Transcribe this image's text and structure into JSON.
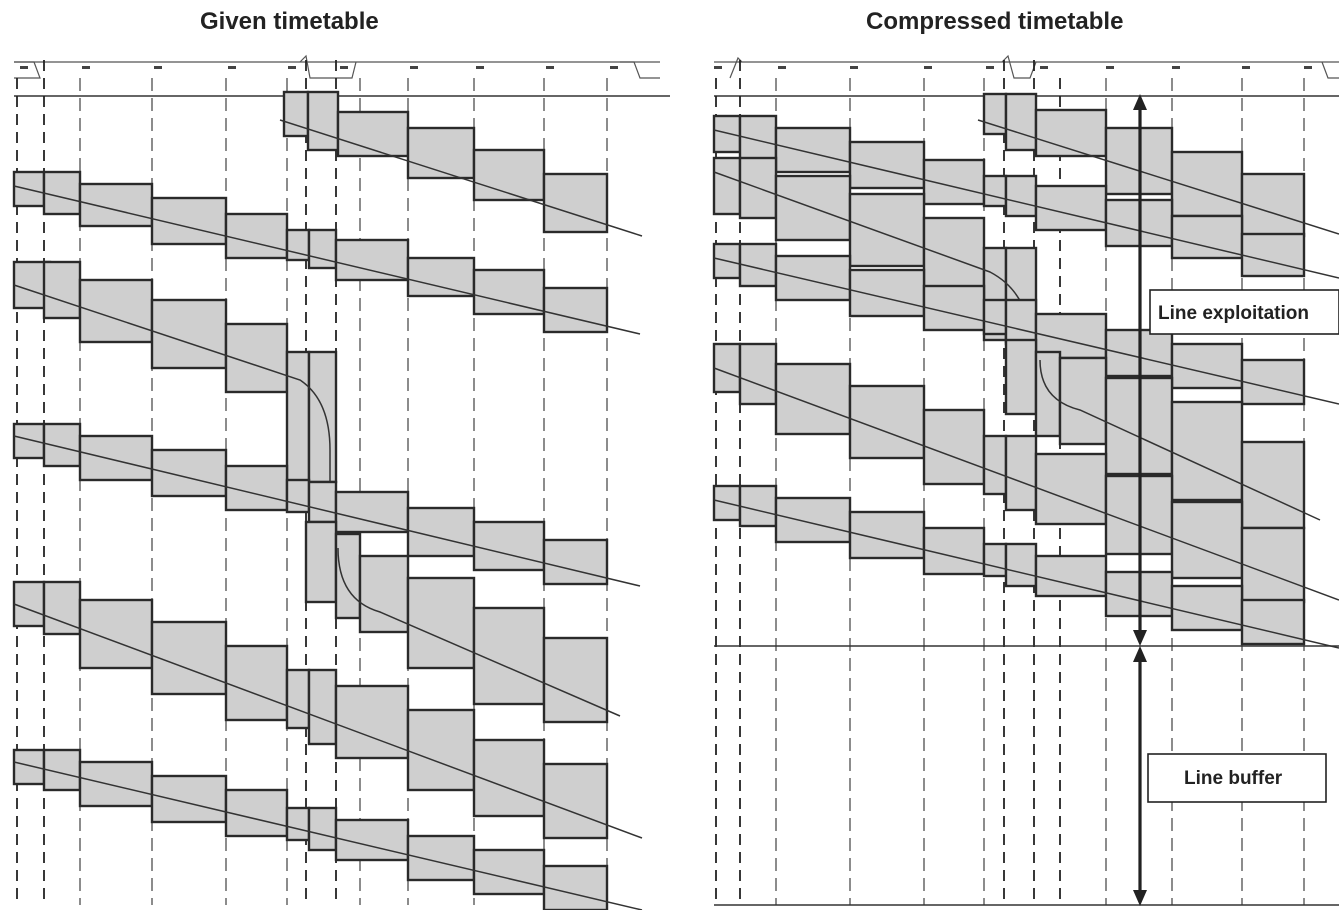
{
  "panels": {
    "left": {
      "title": "Given timetable"
    },
    "right": {
      "title": "Compressed timetable"
    }
  },
  "labels": {
    "line_exploitation": "Line exploitation",
    "line_buffer": "Line buffer"
  },
  "colors": {
    "block_fill": "#cfcfcf",
    "block_stroke": "#2a2a2a",
    "grid_dash": "#8c8c8c"
  }
}
